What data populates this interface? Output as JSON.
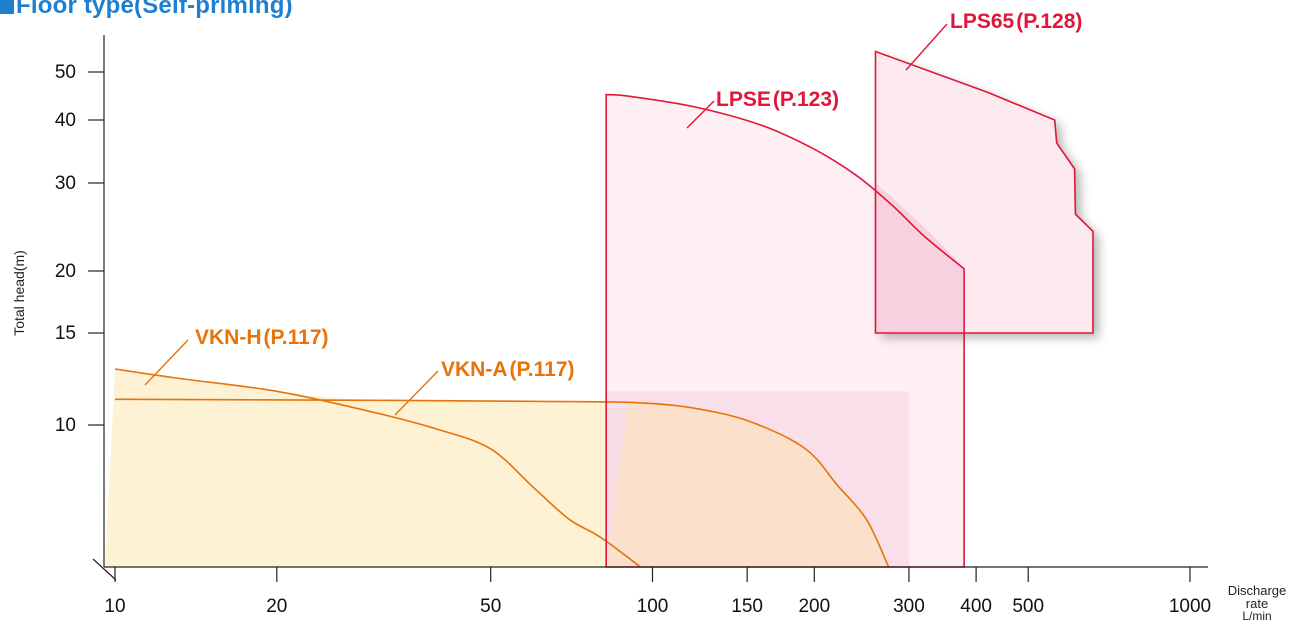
{
  "title": "Floor type(Self-priming)",
  "chart_data": {
    "type": "area",
    "xscale": "log",
    "yscale": "log",
    "xlim": [
      9,
      1600
    ],
    "ylim": [
      6,
      58
    ],
    "xlabel": [
      "Discharge",
      "rate",
      "L/min"
    ],
    "ylabel": "Total head(m)",
    "xticks": [
      {
        "value": 10,
        "label": "10"
      },
      {
        "value": 20,
        "label": "20"
      },
      {
        "value": 50,
        "label": "50"
      },
      {
        "value": 100,
        "label": "100"
      },
      {
        "value": 150,
        "label": "150"
      },
      {
        "value": 200,
        "label": "200"
      },
      {
        "value": 300,
        "label": "300"
      },
      {
        "value": 400,
        "label": "400"
      },
      {
        "value": 500,
        "label": "500"
      },
      {
        "value": 1000,
        "label": "1000"
      }
    ],
    "yticks": [
      {
        "value": 10,
        "label": "10"
      },
      {
        "value": 15,
        "label": "15"
      },
      {
        "value": 20,
        "label": "20"
      },
      {
        "value": 30,
        "label": "30"
      },
      {
        "value": 40,
        "label": "40"
      },
      {
        "value": 50,
        "label": "50"
      }
    ],
    "colors": {
      "vkn_fill": "#fdf2d4",
      "vkn_line": "#e8730a",
      "vkn_label": "#e8730a",
      "lps_fill": "#fdeaf0",
      "lps_line": "#e0163a",
      "lps_label": "#e0163a",
      "overlap_fill": "#f7d9e6",
      "axis": "#222222"
    },
    "series": [
      {
        "name": "VKN-H(P.117)",
        "kind": "curve",
        "points": [
          [
            10,
            12.8
          ],
          [
            13,
            12.3
          ],
          [
            20,
            11.6
          ],
          [
            30,
            10.6
          ],
          [
            40,
            9.8
          ],
          [
            50,
            9.0
          ],
          [
            60,
            7.6
          ],
          [
            70,
            6.6
          ],
          [
            80,
            6.1
          ],
          [
            95,
            5.2
          ]
        ]
      },
      {
        "name": "VKN-A(P.117)",
        "kind": "curve",
        "points": [
          [
            10,
            11.2
          ],
          [
            30,
            11.15
          ],
          [
            60,
            11.1
          ],
          [
            90,
            11.05
          ],
          [
            110,
            10.9
          ],
          [
            130,
            10.6
          ],
          [
            150,
            10.2
          ],
          [
            180,
            9.4
          ],
          [
            200,
            8.7
          ],
          [
            220,
            7.7
          ],
          [
            250,
            6.6
          ],
          [
            275,
            5.2
          ]
        ]
      },
      {
        "name": "LPSE(P.123)",
        "kind": "region",
        "points": [
          [
            82,
            5.2
          ],
          [
            82,
            45
          ],
          [
            90,
            44.7
          ],
          [
            120,
            42.5
          ],
          [
            160,
            39
          ],
          [
            200,
            35
          ],
          [
            240,
            31
          ],
          [
            280,
            27
          ],
          [
            320,
            23.5
          ],
          [
            380,
            20.2
          ],
          [
            380,
            5.2
          ]
        ]
      },
      {
        "name": "LPS65(P.128)",
        "kind": "region",
        "points": [
          [
            260,
            15
          ],
          [
            260,
            55
          ],
          [
            420,
            45.5
          ],
          [
            560,
            40
          ],
          [
            565,
            36
          ],
          [
            610,
            32
          ],
          [
            612,
            26
          ],
          [
            660,
            24
          ],
          [
            660,
            15
          ]
        ]
      }
    ],
    "series_labels": [
      {
        "series": "VKN-H(P.117)",
        "text": "VKN-H",
        "page": "(P.117)"
      },
      {
        "series": "VKN-A(P.117)",
        "text": "VKN-A",
        "page": "(P.117)"
      },
      {
        "series": "LPSE(P.123)",
        "text": "LPSE",
        "page": "(P.123)"
      },
      {
        "series": "LPS65(P.128)",
        "text": "LPS65",
        "page": "(P.128)"
      }
    ]
  }
}
